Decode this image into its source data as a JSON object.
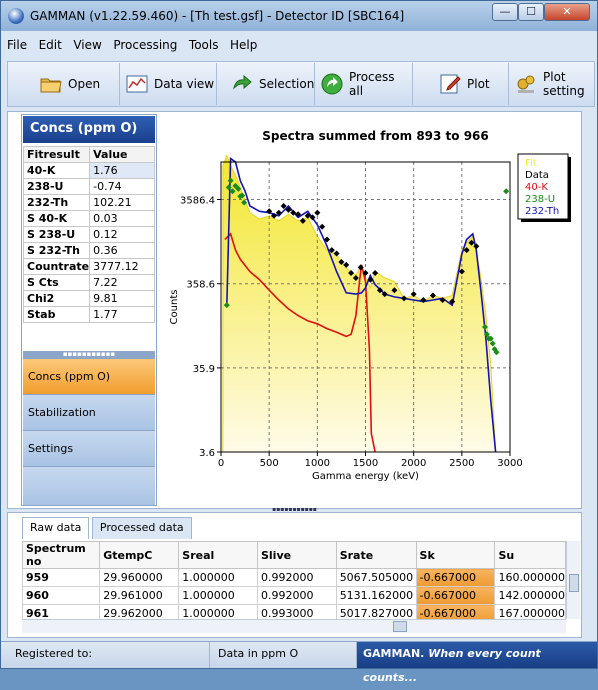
{
  "window": {
    "title": "GAMMAN (v1.22.59.460) - [Th test.gsf] - Detector ID [SBC164]",
    "min_glyph": "—",
    "max_glyph": "☐",
    "close_glyph": "✕"
  },
  "menu": [
    "File",
    "Edit",
    "View",
    "Processing",
    "Tools",
    "Help"
  ],
  "toolbar": [
    {
      "label": "Open",
      "icon": "folder-icon"
    },
    {
      "label": "Data view",
      "icon": "data-view-icon"
    },
    {
      "label": "Selection",
      "icon": "arrow-right-icon"
    },
    {
      "label": "Process all",
      "icon": "process-all-icon"
    },
    {
      "label": "Plot",
      "icon": "plot-icon"
    },
    {
      "label": "Plot setting",
      "icon": "plot-settings-icon"
    }
  ],
  "left_panel": {
    "header": "Concs (ppm O)",
    "table_headers": [
      "Fitresult",
      "Value"
    ],
    "rows": [
      {
        "key": "40-K",
        "value": "1.76"
      },
      {
        "key": "238-U",
        "value": "-0.74"
      },
      {
        "key": "232-Th",
        "value": "102.21"
      },
      {
        "key": "S 40-K",
        "value": "0.03"
      },
      {
        "key": "S 238-U",
        "value": "0.12"
      },
      {
        "key": "S 232-Th",
        "value": "0.36"
      },
      {
        "key": "Countrate",
        "value": "3777.12"
      },
      {
        "key": "S Cts",
        "value": "7.22"
      },
      {
        "key": "Chi2",
        "value": "9.81"
      },
      {
        "key": "Stab",
        "value": "1.77"
      }
    ],
    "grip": "▪▪▪▪▪▪▪▪▪▪▪",
    "nav": [
      "Concs (ppm O)",
      "Stabilization",
      "Settings"
    ]
  },
  "chart_data": {
    "type": "line",
    "title": "Spectra summed from 893 to 966",
    "xlabel": "Gamma energy (keV)",
    "ylabel": "Counts",
    "y_scale": "log",
    "xlim": [
      0,
      3000
    ],
    "ylim": [
      3.6,
      10000
    ],
    "x_ticks": [
      0,
      500,
      1000,
      1500,
      2000,
      2500,
      3000
    ],
    "y_ticks": [
      "3586.4",
      "358.6",
      "35.9",
      "3.6"
    ],
    "y_tick_values": [
      3586.4,
      358.6,
      35.9,
      3.6
    ],
    "grid": "dashed",
    "legend_position": "top-right",
    "legend": [
      {
        "name": "Fit",
        "color": "#f5e83a"
      },
      {
        "name": "Data",
        "color": "#000000"
      },
      {
        "name": "40-K",
        "color": "#e01010"
      },
      {
        "name": "238-U",
        "color": "#1a8c1a"
      },
      {
        "name": "232-Th",
        "color": "#1414b4"
      }
    ],
    "series": [
      {
        "name": "Fit",
        "x": [
          20,
          60,
          100,
          150,
          200,
          250,
          300,
          400,
          500,
          600,
          700,
          800,
          900,
          1000,
          1100,
          1200,
          1300,
          1400,
          1460,
          1500,
          1550,
          1600,
          1700,
          1800,
          1900,
          2000,
          2100,
          2200,
          2300,
          2400,
          2500,
          2550,
          2614,
          2650,
          2700,
          2750,
          2800,
          2850
        ],
        "y": [
          9000,
          12000,
          9000,
          7000,
          5000,
          3500,
          2500,
          2100,
          2300,
          2000,
          2400,
          2000,
          2200,
          1300,
          900,
          800,
          550,
          450,
          600,
          420,
          320,
          500,
          420,
          380,
          240,
          260,
          220,
          260,
          240,
          260,
          900,
          1100,
          1300,
          900,
          400,
          150,
          40,
          3.6
        ]
      },
      {
        "name": "Data",
        "x": [
          500,
          550,
          600,
          650,
          700,
          750,
          800,
          850,
          900,
          950,
          1000,
          1050,
          1100,
          1150,
          1200,
          1250,
          1300,
          1350,
          1400,
          1450,
          1500,
          1550,
          1600,
          1650,
          1700,
          1800,
          1900,
          2000,
          2100,
          2200,
          2300,
          2400,
          2500,
          2550,
          2600,
          2650
        ],
        "y": [
          2600,
          2300,
          2500,
          3000,
          2700,
          2500,
          2400,
          2000,
          2300,
          2200,
          2500,
          1700,
          1200,
          900,
          820,
          650,
          600,
          480,
          420,
          560,
          480,
          400,
          480,
          300,
          270,
          300,
          240,
          270,
          230,
          260,
          230,
          220,
          500,
          900,
          1100,
          1000
        ]
      },
      {
        "name": "40-K",
        "x": [
          40,
          100,
          150,
          200,
          300,
          400,
          500,
          600,
          700,
          800,
          900,
          1000,
          1100,
          1200,
          1300,
          1350,
          1400,
          1440,
          1460,
          1500,
          1540,
          1560,
          1600
        ],
        "y": [
          1200,
          1400,
          900,
          700,
          500,
          400,
          300,
          230,
          180,
          150,
          130,
          120,
          105,
          95,
          85,
          90,
          150,
          400,
          600,
          380,
          60,
          6,
          3.6
        ]
      },
      {
        "name": "238-U",
        "x": [
          60,
          80,
          100,
          120,
          150,
          180,
          200,
          220,
          240,
          2740,
          2760,
          2780,
          2800,
          2820,
          2840,
          2860,
          2960
        ],
        "y": [
          200,
          5000,
          6000,
          4500,
          5200,
          4800,
          3900,
          4000,
          3300,
          110,
          90,
          80,
          80,
          70,
          60,
          55,
          4500
        ]
      },
      {
        "name": "232-Th",
        "x": [
          60,
          100,
          150,
          200,
          250,
          300,
          400,
          500,
          600,
          700,
          800,
          900,
          1000,
          1100,
          1200,
          1300,
          1400,
          1460,
          1500,
          1550,
          1600,
          1700,
          1800,
          1900,
          2000,
          2100,
          2200,
          2300,
          2400,
          2500,
          2550,
          2614,
          2650,
          2700,
          2750,
          2800,
          2850
        ],
        "y": [
          200,
          11000,
          10000,
          6000,
          4500,
          3000,
          2600,
          2500,
          2300,
          3000,
          2200,
          2600,
          1800,
          1000,
          500,
          280,
          270,
          280,
          320,
          450,
          350,
          270,
          250,
          240,
          230,
          220,
          230,
          240,
          200,
          800,
          1200,
          1400,
          900,
          280,
          80,
          15,
          3.6
        ]
      }
    ]
  },
  "bottom": {
    "tabs": [
      "Raw data",
      "Processed data"
    ],
    "columns": [
      "Spectrum no",
      "GtempC",
      "Sreal",
      "Slive",
      "Srate",
      "Sk",
      "Su"
    ],
    "rows": [
      [
        "959",
        "29.960000",
        "1.000000",
        "0.992000",
        "5067.505000",
        "-0.667000",
        "160.000000"
      ],
      [
        "960",
        "29.961000",
        "1.000000",
        "0.992000",
        "5131.162000",
        "-0.667000",
        "142.000000"
      ],
      [
        "961",
        "29.962000",
        "1.000000",
        "0.993000",
        "5017.827000",
        "-0.667000",
        "167.000000"
      ]
    ]
  },
  "status": {
    "registered": "Registered to:",
    "units": "Data in ppm O",
    "slogan_brand": "GAMMAN.",
    "slogan_text": "When every count counts..."
  }
}
